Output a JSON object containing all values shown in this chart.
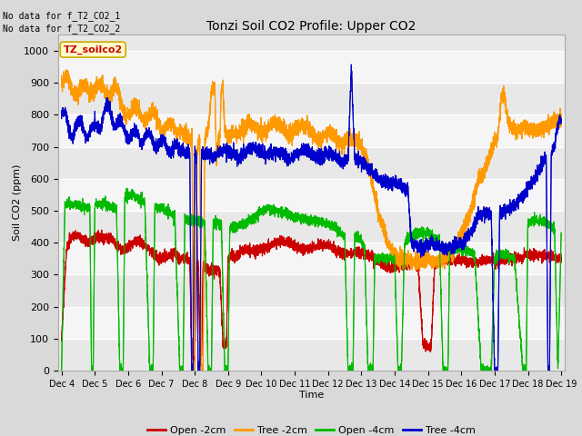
{
  "title": "Tonzi Soil CO2 Profile: Upper CO2",
  "xlabel": "Time",
  "ylabel": "Soil CO2 (ppm)",
  "ylim": [
    0,
    1050
  ],
  "background_color": "#d9d9d9",
  "plot_bg": "#f0f0f0",
  "no_data_text": [
    "No data for f_T2_CO2_1",
    "No data for f_T2_CO2_2"
  ],
  "legend_box_label": "TZ_soilco2",
  "legend_box_color": "#ffffcc",
  "legend_box_border": "#ccaa00",
  "series": {
    "open_2cm": {
      "label": "Open -2cm",
      "color": "#cc0000"
    },
    "tree_2cm": {
      "label": "Tree -2cm",
      "color": "#ff9900"
    },
    "open_4cm": {
      "label": "Open -4cm",
      "color": "#00bb00"
    },
    "tree_4cm": {
      "label": "Tree -4cm",
      "color": "#0000cc"
    }
  },
  "xtick_labels": [
    "Dec 4",
    "Dec 5",
    "Dec 6",
    "Dec 7",
    "Dec 8",
    "Dec 9",
    "Dec 10",
    "Dec 11",
    "Dec 12",
    "Dec 13",
    "Dec 14",
    "Dec 15",
    "Dec 16",
    "Dec 17",
    "Dec 18",
    "Dec 19"
  ],
  "ytick_values": [
    0,
    100,
    200,
    300,
    400,
    500,
    600,
    700,
    800,
    900,
    1000
  ]
}
